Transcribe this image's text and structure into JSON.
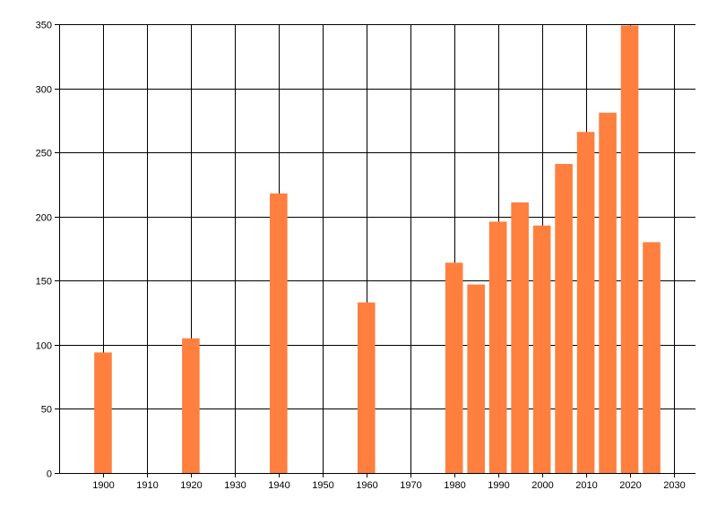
{
  "chart_data": {
    "type": "bar",
    "title": "",
    "xlabel": "",
    "ylabel": "",
    "x": [
      1900,
      1920,
      1940,
      1960,
      1980,
      1985,
      1990,
      1995,
      2000,
      2005,
      2010,
      2015,
      2020,
      2025
    ],
    "values": [
      94,
      105,
      218,
      133,
      164,
      147,
      196,
      211,
      193,
      241,
      266,
      281,
      349,
      180
    ],
    "xlim": [
      1890,
      2035
    ],
    "ylim": [
      0,
      350
    ],
    "xticks": [
      1900,
      1910,
      1920,
      1930,
      1940,
      1950,
      1960,
      1970,
      1980,
      1990,
      2000,
      2010,
      2020,
      2030
    ],
    "yticks": [
      0,
      50,
      100,
      150,
      200,
      250,
      300,
      350
    ],
    "grid": true,
    "bar_color": "#ff7f3f",
    "grid_color": "#000000"
  }
}
